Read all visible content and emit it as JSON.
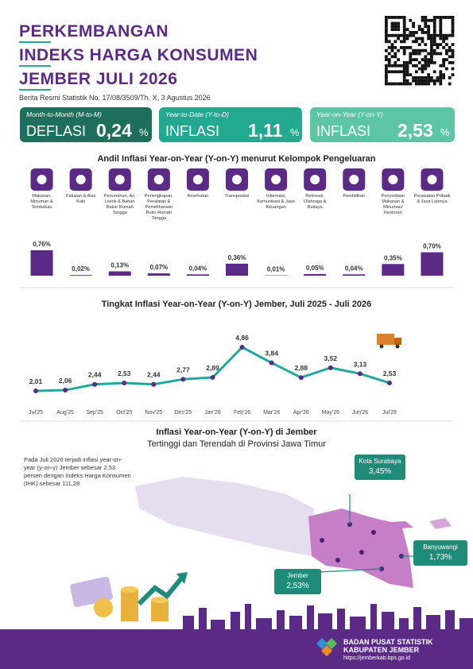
{
  "header": {
    "title_lines": [
      "PERKEMBANGAN",
      "INDEKS HARGA KONSUMEN",
      "JEMBER JULI 2026"
    ],
    "subtitle": "Berita Resmi Statistik No. 17/08/3509/Th. X, 3 Agustus 2026"
  },
  "cards": [
    {
      "label": "Month-to-Month (M-to-M)",
      "kind": "DEFLASI",
      "value": "0,24",
      "unit": "%"
    },
    {
      "label": "Year-to-Date (Y-to-D)",
      "kind": "INFLASI",
      "value": "1,11",
      "unit": "%"
    },
    {
      "label": "Year-on-Year (Y-on-Y)",
      "kind": "INFLASI",
      "value": "2,53",
      "unit": "%"
    }
  ],
  "chart_data": [
    {
      "type": "bar",
      "title": "Andil Inflasi Year-on-Year (Y-on-Y) menurut Kelompok Pengeluaran",
      "categories": [
        "Makanan, Minuman & Tembakau",
        "Pakaian & Alas Kaki",
        "Perumahan, Air, Listrik & Bahan Bakar Rumah Tangga",
        "Perlengkapan, Peralatan & Pemeliharaan Rutin Rumah Tangga",
        "Kesehatan",
        "Transportasi",
        "Informasi, Komunikasi & Jasa Keuangan",
        "Rekreasi, Olahraga & Budaya",
        "Pendidikan",
        "Penyediaan Makanan & Minuman/ Restoran",
        "Perawatan Pribadi & Jasa Lainnya"
      ],
      "values": [
        0.76,
        0.02,
        0.13,
        0.07,
        0.04,
        0.36,
        0.01,
        0.05,
        0.04,
        0.35,
        0.7
      ],
      "value_labels": [
        "0,76%",
        "0,02%",
        "0,13%",
        "0,07%",
        "0,04%",
        "0,36%",
        "0,01%",
        "0,05%",
        "0,04%",
        "0,35%",
        "0,70%"
      ],
      "color": "#5b2a86"
    },
    {
      "type": "line",
      "title": "Tingkat Inflasi Year-on-Year (Y-on-Y) Jember, Juli 2025 - Juli 2026",
      "categories": [
        "Jul'25",
        "Aug'25",
        "Sep'25",
        "Oct'25",
        "Nov'25",
        "Dec'25",
        "Jan'26",
        "Feb'26",
        "Mar'26",
        "Apr'26",
        "May'26",
        "Jun'26",
        "Jul'26"
      ],
      "values": [
        2.01,
        2.06,
        2.44,
        2.53,
        2.44,
        2.77,
        2.89,
        4.86,
        3.84,
        2.88,
        3.52,
        3.13,
        2.53
      ],
      "value_labels": [
        "2,01",
        "2,06",
        "2,44",
        "2,53",
        "2,44",
        "2,77",
        "2,89",
        "4,86",
        "3,84",
        "2,88",
        "3,52",
        "3,13",
        "2,53"
      ],
      "color": "#1fa99a",
      "marker_color": "#5b2a86"
    }
  ],
  "map": {
    "title": "Inflasi Year-on-Year (Y-on-Y) di Jember",
    "subtitle": "Tertinggi dan Terendah di Provinsi Jawa Timur",
    "note": "Pada Juli 2026 terjadi inflasi year-on-year (y-on-y) Jember sebesar 2,53 persen dengan Indeks Harga Konsumen (IHK) sebesar 111,28",
    "callouts": [
      {
        "name": "Kota Surabaya",
        "value": "3,45%"
      },
      {
        "name": "Banyuwangi",
        "value": "1,73%"
      },
      {
        "name": "Jember",
        "value": "2,53%"
      }
    ]
  },
  "footer": {
    "org": "BADAN PUSAT STATISTIK",
    "unit": "KABUPATEN JEMBER",
    "url": "https://jemberkab.bps.go.id"
  }
}
